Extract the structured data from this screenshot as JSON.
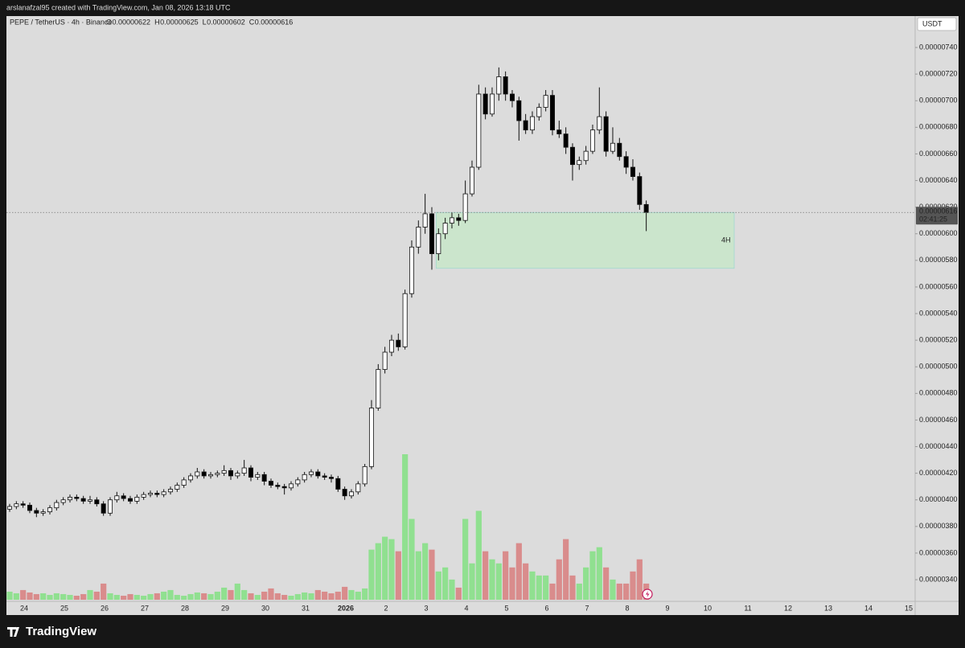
{
  "caption": "arslanafzal95 created with TradingView.com, Jan 08, 2026 13:18 UTC",
  "brand": "TradingView",
  "chart_data": {
    "type": "candlestick",
    "symbol": "PEPE / TetherUS · 4h · Binance",
    "ohlc": [
      {
        "key": "O",
        "value": 6.22e-06,
        "label": "0.00000622"
      },
      {
        "key": "H",
        "value": 6.25e-06,
        "label": "0.00000625"
      },
      {
        "key": "L",
        "value": 6.02e-06,
        "label": "0.00000602"
      },
      {
        "key": "C",
        "value": 6.16e-06,
        "label": "0.00000616"
      }
    ],
    "currency": "USDT",
    "last_price": {
      "value": 6.16e-06,
      "label": "0.00000616"
    },
    "countdown": "02:41:25",
    "zone": {
      "label": "4H",
      "top": 6.16e-06,
      "bottom": 5.74e-06,
      "color": "#c8e6c9"
    },
    "up_color": "#ffffff",
    "down_color": "#000000",
    "volume_up_color": "#90e090",
    "volume_down_color": "#d98c8c",
    "xticks": [
      "24",
      "25",
      "26",
      "27",
      "28",
      "29",
      "30",
      "31",
      "2026",
      "2",
      "3",
      "4",
      "5",
      "6",
      "7",
      "8",
      "9",
      "10",
      "11",
      "12",
      "13",
      "14",
      "15"
    ],
    "ylim": [
      3.237e-06,
      7.636e-06
    ],
    "yticks": [
      {
        "value": 3.4e-06,
        "label": "0.00000340"
      },
      {
        "value": 3.6e-06,
        "label": "0.00000360"
      },
      {
        "value": 3.8e-06,
        "label": "0.00000380"
      },
      {
        "value": 4e-06,
        "label": "0.00000400"
      },
      {
        "value": 4.2e-06,
        "label": "0.00000420"
      },
      {
        "value": 4.4e-06,
        "label": "0.00000440"
      },
      {
        "value": 4.6e-06,
        "label": "0.00000460"
      },
      {
        "value": 4.8e-06,
        "label": "0.00000480"
      },
      {
        "value": 5e-06,
        "label": "0.00000500"
      },
      {
        "value": 5.2e-06,
        "label": "0.00000520"
      },
      {
        "value": 5.4e-06,
        "label": "0.00000540"
      },
      {
        "value": 5.6e-06,
        "label": "0.00000560"
      },
      {
        "value": 5.8e-06,
        "label": "0.00000580"
      },
      {
        "value": 6e-06,
        "label": "0.00000600"
      },
      {
        "value": 6.2e-06,
        "label": "0.00000620"
      },
      {
        "value": 6.4e-06,
        "label": "0.00000640"
      },
      {
        "value": 6.6e-06,
        "label": "0.00000660"
      },
      {
        "value": 6.8e-06,
        "label": "0.00000680"
      },
      {
        "value": 7e-06,
        "label": "0.00000700"
      },
      {
        "value": 7.2e-06,
        "label": "0.00000720"
      },
      {
        "value": 7.4e-06,
        "label": "0.00000740"
      }
    ],
    "open": [
      3.93e-06,
      3.95e-06,
      3.97e-06,
      3.96e-06,
      3.92e-06,
      3.9e-06,
      3.91e-06,
      3.94e-06,
      3.98e-06,
      4e-06,
      4.02e-06,
      4.01e-06,
      3.99e-06,
      4e-06,
      3.97e-06,
      3.9e-06,
      4e-06,
      4.03e-06,
      4.01e-06,
      3.99e-06,
      4.02e-06,
      4.04e-06,
      4.05e-06,
      4.04e-06,
      4.06e-06,
      4.08e-06,
      4.11e-06,
      4.15e-06,
      4.18e-06,
      4.21e-06,
      4.18e-06,
      4.19e-06,
      4.2e-06,
      4.22e-06,
      4.18e-06,
      4.2e-06,
      4.24e-06,
      4.17e-06,
      4.19e-06,
      4.14e-06,
      4.11e-06,
      4.1e-06,
      4.09e-06,
      4.12e-06,
      4.15e-06,
      4.19e-06,
      4.21e-06,
      4.18e-06,
      4.17e-06,
      4.16e-06,
      4.08e-06,
      4.03e-06,
      4.06e-06,
      4.12e-06,
      4.25e-06,
      4.69e-06,
      4.98e-06,
      5.11e-06,
      5.2e-06,
      5.15e-06,
      5.55e-06,
      5.9e-06,
      6.05e-06,
      6.15e-06,
      5.85e-06,
      6e-06,
      6.08e-06,
      6.12e-06,
      6.1e-06,
      6.3e-06,
      6.5e-06,
      7.05e-06,
      6.9e-06,
      7.05e-06,
      7.18e-06,
      7.05e-06,
      7e-06,
      6.85e-06,
      6.78e-06,
      6.88e-06,
      6.95e-06,
      7.04e-06,
      6.78e-06,
      6.75e-06,
      6.65e-06,
      6.52e-06,
      6.55e-06,
      6.62e-06,
      6.78e-06,
      6.88e-06,
      6.62e-06,
      6.68e-06,
      6.58e-06,
      6.5e-06,
      6.43e-06,
      6.22e-06
    ],
    "high": [
      3.97e-06,
      3.99e-06,
      3.99e-06,
      3.98e-06,
      3.94e-06,
      3.93e-06,
      3.96e-06,
      4e-06,
      4.02e-06,
      4.04e-06,
      4.04e-06,
      4.03e-06,
      4.03e-06,
      4.02e-06,
      3.99e-06,
      4.02e-06,
      4.06e-06,
      4.05e-06,
      4.03e-06,
      4.04e-06,
      4.06e-06,
      4.07e-06,
      4.07e-06,
      4.08e-06,
      4.1e-06,
      4.13e-06,
      4.17e-06,
      4.2e-06,
      4.24e-06,
      4.23e-06,
      4.21e-06,
      4.22e-06,
      4.26e-06,
      4.24e-06,
      4.22e-06,
      4.3e-06,
      4.26e-06,
      4.21e-06,
      4.21e-06,
      4.16e-06,
      4.13e-06,
      4.12e-06,
      4.14e-06,
      4.17e-06,
      4.21e-06,
      4.23e-06,
      4.23e-06,
      4.2e-06,
      4.19e-06,
      4.18e-06,
      4.1e-06,
      4.08e-06,
      4.14e-06,
      4.27e-06,
      4.75e-06,
      5.02e-06,
      5.15e-06,
      5.24e-06,
      5.25e-06,
      5.58e-06,
      5.95e-06,
      6.1e-06,
      6.3e-06,
      6.2e-06,
      6.04e-06,
      6.12e-06,
      6.16e-06,
      6.15e-06,
      6.4e-06,
      6.55e-06,
      7.12e-06,
      7.1e-06,
      7.1e-06,
      7.25e-06,
      7.22e-06,
      7.08e-06,
      7.03e-06,
      6.9e-06,
      6.92e-06,
      6.98e-06,
      7.08e-06,
      7.08e-06,
      6.85e-06,
      6.8e-06,
      6.68e-06,
      6.58e-06,
      6.66e-06,
      6.82e-06,
      7.1e-06,
      6.92e-06,
      6.8e-06,
      6.72e-06,
      6.62e-06,
      6.56e-06,
      6.46e-06,
      6.25e-06
    ],
    "low": [
      3.91e-06,
      3.93e-06,
      3.94e-06,
      3.9e-06,
      3.87e-06,
      3.88e-06,
      3.89e-06,
      3.92e-06,
      3.96e-06,
      3.98e-06,
      3.99e-06,
      3.97e-06,
      3.97e-06,
      3.95e-06,
      3.88e-06,
      3.88e-06,
      3.98e-06,
      3.99e-06,
      3.97e-06,
      3.97e-06,
      4e-06,
      4.02e-06,
      4.02e-06,
      4.02e-06,
      4.04e-06,
      4.06e-06,
      4.09e-06,
      4.13e-06,
      4.16e-06,
      4.16e-06,
      4.16e-06,
      4.17e-06,
      4.18e-06,
      4.15e-06,
      4.16e-06,
      4.18e-06,
      4.14e-06,
      4.15e-06,
      4.11e-06,
      4.09e-06,
      4.08e-06,
      4.04e-06,
      4.07e-06,
      4.1e-06,
      4.13e-06,
      4.17e-06,
      4.16e-06,
      4.15e-06,
      4.13e-06,
      4.06e-06,
      4e-06,
      4.01e-06,
      4.04e-06,
      4.1e-06,
      4.23e-06,
      4.67e-06,
      4.95e-06,
      5.08e-06,
      5.12e-06,
      5.13e-06,
      5.52e-06,
      5.85e-06,
      6e-06,
      5.73e-06,
      5.8e-06,
      5.96e-06,
      6.04e-06,
      6.06e-06,
      6.08e-06,
      6.28e-06,
      6.48e-06,
      6.86e-06,
      6.88e-06,
      7e-06,
      7e-06,
      6.95e-06,
      6.7e-06,
      6.75e-06,
      6.75e-06,
      6.85e-06,
      6.92e-06,
      6.74e-06,
      6.72e-06,
      6.6e-06,
      6.4e-06,
      6.48e-06,
      6.52e-06,
      6.6e-06,
      6.75e-06,
      6.58e-06,
      6.6e-06,
      6.55e-06,
      6.45e-06,
      6.4e-06,
      6.18e-06,
      6.02e-06
    ],
    "close": [
      3.95e-06,
      3.97e-06,
      3.96e-06,
      3.92e-06,
      3.9e-06,
      3.91e-06,
      3.94e-06,
      3.98e-06,
      4e-06,
      4.02e-06,
      4.01e-06,
      3.99e-06,
      4e-06,
      3.97e-06,
      3.9e-06,
      4e-06,
      4.03e-06,
      4.01e-06,
      3.99e-06,
      4.02e-06,
      4.04e-06,
      4.05e-06,
      4.04e-06,
      4.06e-06,
      4.08e-06,
      4.11e-06,
      4.15e-06,
      4.18e-06,
      4.21e-06,
      4.18e-06,
      4.19e-06,
      4.2e-06,
      4.22e-06,
      4.18e-06,
      4.2e-06,
      4.24e-06,
      4.17e-06,
      4.19e-06,
      4.14e-06,
      4.11e-06,
      4.1e-06,
      4.09e-06,
      4.12e-06,
      4.15e-06,
      4.19e-06,
      4.21e-06,
      4.18e-06,
      4.17e-06,
      4.16e-06,
      4.08e-06,
      4.03e-06,
      4.06e-06,
      4.12e-06,
      4.25e-06,
      4.69e-06,
      4.98e-06,
      5.11e-06,
      5.2e-06,
      5.15e-06,
      5.55e-06,
      5.9e-06,
      6.05e-06,
      6.15e-06,
      5.85e-06,
      6e-06,
      6.08e-06,
      6.12e-06,
      6.1e-06,
      6.3e-06,
      6.5e-06,
      7.05e-06,
      6.9e-06,
      7.05e-06,
      7.18e-06,
      7.05e-06,
      7e-06,
      6.85e-06,
      6.78e-06,
      6.88e-06,
      6.95e-06,
      7.04e-06,
      6.78e-06,
      6.75e-06,
      6.65e-06,
      6.52e-06,
      6.55e-06,
      6.62e-06,
      6.78e-06,
      6.88e-06,
      6.62e-06,
      6.68e-06,
      6.58e-06,
      6.5e-06,
      6.43e-06,
      6.22e-06,
      6.16e-06
    ],
    "volume": [
      10,
      8,
      12,
      9,
      7,
      8,
      6,
      8,
      7,
      6,
      5,
      7,
      12,
      10,
      20,
      8,
      6,
      5,
      7,
      6,
      5,
      7,
      8,
      10,
      12,
      6,
      5,
      7,
      9,
      8,
      7,
      10,
      15,
      12,
      20,
      12,
      8,
      6,
      10,
      14,
      8,
      6,
      5,
      7,
      9,
      8,
      12,
      10,
      8,
      10,
      16,
      12,
      10,
      14,
      62,
      70,
      78,
      75,
      60,
      180,
      100,
      60,
      70,
      62,
      35,
      40,
      25,
      15,
      100,
      45,
      110,
      60,
      50,
      45,
      60,
      40,
      70,
      45,
      35,
      30,
      30,
      20,
      50,
      75,
      30,
      20,
      40,
      60,
      65,
      40,
      25,
      20,
      20,
      35,
      50,
      20
    ]
  }
}
